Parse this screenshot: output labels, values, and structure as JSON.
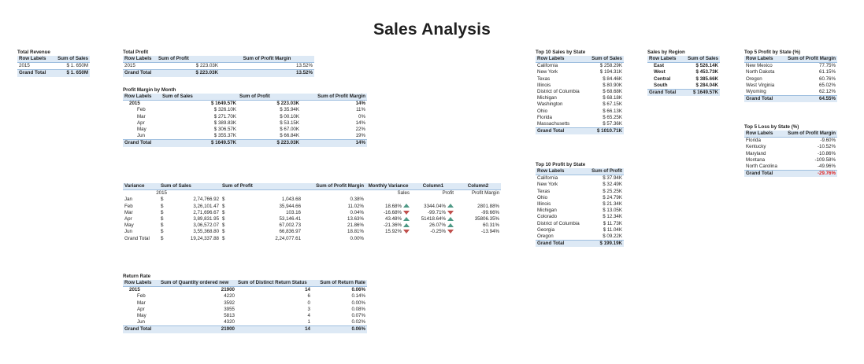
{
  "page_title": "Sales Analysis",
  "total_revenue": {
    "title": "Total Revenue",
    "headers": [
      "Row Labels",
      "Sum of Sales"
    ],
    "rows": [
      [
        "2015",
        "$ 1. 650M"
      ]
    ],
    "grand": [
      "Grand Total",
      "$ 1. 650M"
    ]
  },
  "total_profit": {
    "title": "Total Profit",
    "headers": [
      "Row Labels",
      "Sum of Profit",
      "Sum of Profit Margin"
    ],
    "rows": [
      [
        "2015",
        "$ 223.03K",
        "13.52%"
      ]
    ],
    "grand": [
      "Grand Total",
      "$ 223.03K",
      "13.52%"
    ]
  },
  "margin_by_month": {
    "title": "Profit Margin by Month",
    "headers": [
      "Row Labels",
      "Sum of Sales",
      "Sum of Profit",
      "Sum of Profit Margin"
    ],
    "year": [
      "2015",
      "$ 1649.57K",
      "$ 223.03K",
      "14%"
    ],
    "rows": [
      [
        "Feb",
        "$ 326.10K",
        "$ 35.94K",
        "11%"
      ],
      [
        "Mar",
        "$ 271.70K",
        "$ 00.10K",
        "0%"
      ],
      [
        "Apr",
        "$ 389.83K",
        "$ 53.15K",
        "14%"
      ],
      [
        "May",
        "$ 306.57K",
        "$ 67.00K",
        "22%"
      ],
      [
        "Jun",
        "$ 355.37K",
        "$ 66.84K",
        "19%"
      ]
    ],
    "grand": [
      "Grand Total",
      "$ 1649.57K",
      "$ 223.03K",
      "14%"
    ]
  },
  "variance": {
    "headers": [
      "Variance",
      "Sum of Sales",
      "Sum of Profit",
      "Sum of Profit Margin",
      "Monthly Variance",
      "Column1",
      "Column2"
    ],
    "subheaders": [
      "2015",
      "Sales",
      "Profit",
      "Profit Margin"
    ],
    "rows": [
      {
        "label": "Jan",
        "cur1": "$",
        "sales": "2,74,766.92",
        "cur2": "$",
        "profit": "1,043.68",
        "margin": "0.38%",
        "mv": "",
        "mv_dir": "",
        "c1": "",
        "c1_dir": "",
        "c2": ""
      },
      {
        "label": "Feb",
        "cur1": "$",
        "sales": "3,26,101.47",
        "cur2": "$",
        "profit": "35,944.66",
        "margin": "11.02%",
        "mv": "18.68%",
        "mv_dir": "up",
        "c1": "3344.04%",
        "c1_dir": "up",
        "c2": "2801.88%"
      },
      {
        "label": "Mar",
        "cur1": "$",
        "sales": "2,71,696.67",
        "cur2": "$",
        "profit": "103.16",
        "margin": "0.04%",
        "mv": "-16.68%",
        "mv_dir": "down",
        "c1": "-99.71%",
        "c1_dir": "down",
        "c2": "-99.66%"
      },
      {
        "label": "Apr",
        "cur1": "$",
        "sales": "3,89,831.95",
        "cur2": "$",
        "profit": "53,146.41",
        "margin": "13.63%",
        "mv": "43.48%",
        "mv_dir": "up",
        "c1": "51418.64%",
        "c1_dir": "up",
        "c2": "35806.35%"
      },
      {
        "label": "May",
        "cur1": "$",
        "sales": "3,06,572.07",
        "cur2": "$",
        "profit": "67,002.73",
        "margin": "21.86%",
        "mv": "-21.36%",
        "mv_dir": "up",
        "c1": "26.07%",
        "c1_dir": "up",
        "c2": "60.31%"
      },
      {
        "label": "Jun",
        "cur1": "$",
        "sales": "3,55,368.80",
        "cur2": "$",
        "profit": "66,836.97",
        "margin": "18.81%",
        "mv": "15.92%",
        "mv_dir": "down",
        "c1": "-0.25%",
        "c1_dir": "down",
        "c2": "-13.94%"
      },
      {
        "label": "Grand Total",
        "cur1": "$",
        "sales": "19,24,337.88",
        "cur2": "$",
        "profit": "2,24,077.61",
        "margin": "0.00%",
        "mv": "",
        "mv_dir": "",
        "c1": "",
        "c1_dir": "",
        "c2": ""
      }
    ]
  },
  "return_rate": {
    "title": "Return Rate",
    "headers": [
      "Row Labels",
      "Sum of Quantity ordered new",
      "Sum of Distinct Return Status",
      "Sum of Return Rate"
    ],
    "year": [
      "2015",
      "21900",
      "14",
      "0.06%"
    ],
    "rows": [
      [
        "Feb",
        "4220",
        "6",
        "0.14%"
      ],
      [
        "Mar",
        "3592",
        "0",
        "0.00%"
      ],
      [
        "Apr",
        "3955",
        "3",
        "0.08%"
      ],
      [
        "May",
        "5813",
        "4",
        "0.07%"
      ],
      [
        "Jun",
        "4320",
        "1",
        "0.02%"
      ]
    ],
    "grand": [
      "Grand Total",
      "21900",
      "14",
      "0.06%"
    ]
  },
  "top10_sales": {
    "title": "Top 10 Sales by State",
    "headers": [
      "Row Labels",
      "Sum of Sales"
    ],
    "rows": [
      [
        "California",
        "$ 258.29K"
      ],
      [
        "New York",
        "$ 194.31K"
      ],
      [
        "Texas",
        "$ 84.46K"
      ],
      [
        "Illinois",
        "$ 80.90K"
      ],
      [
        "District of Columbia",
        "$ 68.68K"
      ],
      [
        "Michigan",
        "$ 68.18K"
      ],
      [
        "Washington",
        "$ 67.15K"
      ],
      [
        "Ohio",
        "$ 66.13K"
      ],
      [
        "Florida",
        "$ 65.25K"
      ],
      [
        "Massachusetts",
        "$ 57.36K"
      ]
    ],
    "grand": [
      "Grand Total",
      "$ 1010.71K"
    ]
  },
  "top10_profit": {
    "title": "Top 10 Profit by State",
    "headers": [
      "Row Labels",
      "Sum of Profit"
    ],
    "rows": [
      [
        "California",
        "$ 37.94K"
      ],
      [
        "New York",
        "$ 32.49K"
      ],
      [
        "Texas",
        "$ 25.25K"
      ],
      [
        "Ohio",
        "$ 24.79K"
      ],
      [
        "Illinois",
        "$ 21.34K"
      ],
      [
        "Michigan",
        "$ 13.05K"
      ],
      [
        "Colorado",
        "$ 12.34K"
      ],
      [
        "District of Columbia",
        "$ 11.73K"
      ],
      [
        "Georgia",
        "$ 11.04K"
      ],
      [
        "Oregon",
        "$ 09.22K"
      ]
    ],
    "grand": [
      "Grand Total",
      "$ 199.19K"
    ]
  },
  "sales_by_region": {
    "title": "Sales by Region",
    "headers": [
      "Row Labels",
      "Sum of Sales"
    ],
    "rows": [
      [
        "East",
        "$ 526.14K"
      ],
      [
        "West",
        "$ 453.73K"
      ],
      [
        "Central",
        "$ 385.66K"
      ],
      [
        "South",
        "$ 284.04K"
      ]
    ],
    "grand": [
      "Grand Total",
      "$ 1649.57K"
    ]
  },
  "top5_profit": {
    "title": "Top 5 Profit by State (%)",
    "headers": [
      "Row Labels",
      "Sum of Profit Margin"
    ],
    "rows": [
      [
        "New Mexico",
        "77.75%"
      ],
      [
        "North Dakota",
        "61.15%"
      ],
      [
        "Oregon",
        "60.76%"
      ],
      [
        "West Virginia",
        "65.02%"
      ],
      [
        "Wyoming",
        "62.12%"
      ]
    ],
    "grand": [
      "Grand Total",
      "64.55%"
    ]
  },
  "top5_loss": {
    "title": "Top 5 Loss by State (%)",
    "headers": [
      "Row Labels",
      "Sum of Profit Margin"
    ],
    "rows": [
      [
        "Florida",
        "-9.60%"
      ],
      [
        "Kentucky",
        "-10.52%"
      ],
      [
        "Maryland",
        "-10.86%"
      ],
      [
        "Montana",
        "-109.58%"
      ],
      [
        "North Carolina",
        "-49.96%"
      ]
    ],
    "grand": [
      "Grand Total",
      "-29.76%"
    ]
  },
  "colors": {
    "header_fill": "#dde9f5",
    "up_arrow": "#4f9a86",
    "down_arrow": "#c0504d",
    "negative_total": "#e02020"
  }
}
